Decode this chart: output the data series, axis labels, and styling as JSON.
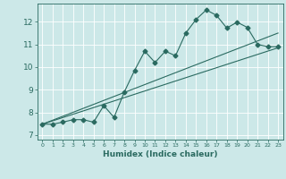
{
  "xlabel": "Humidex (Indice chaleur)",
  "bg_color": "#cce8e8",
  "line_color": "#2a6a60",
  "grid_color": "#ffffff",
  "xlim": [
    -0.5,
    23.5
  ],
  "ylim": [
    6.8,
    12.8
  ],
  "xticks": [
    0,
    1,
    2,
    3,
    4,
    5,
    6,
    7,
    8,
    9,
    10,
    11,
    12,
    13,
    14,
    15,
    16,
    17,
    18,
    19,
    20,
    21,
    22,
    23
  ],
  "yticks": [
    7,
    8,
    9,
    10,
    11,
    12
  ],
  "data_x": [
    0,
    1,
    2,
    3,
    4,
    5,
    6,
    7,
    8,
    9,
    10,
    11,
    12,
    13,
    14,
    15,
    16,
    17,
    18,
    19,
    20,
    21,
    22,
    23
  ],
  "data_y": [
    7.48,
    7.48,
    7.57,
    7.68,
    7.68,
    7.57,
    8.3,
    7.78,
    8.9,
    9.85,
    10.7,
    10.2,
    10.7,
    10.5,
    11.5,
    12.1,
    12.52,
    12.28,
    11.72,
    11.98,
    11.75,
    11.0,
    10.9,
    10.9
  ],
  "trend1_x": [
    0,
    23
  ],
  "trend1_y": [
    7.48,
    11.5
  ],
  "trend2_x": [
    0,
    23
  ],
  "trend2_y": [
    7.48,
    10.85
  ]
}
